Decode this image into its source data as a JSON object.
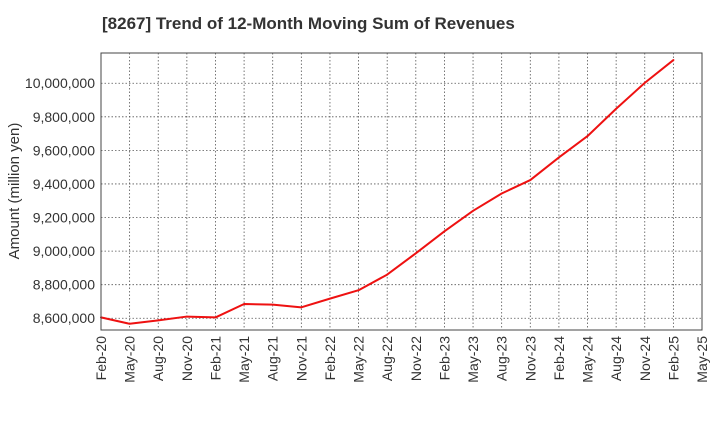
{
  "chart_data": {
    "type": "line",
    "title": "[8267]  Trend of 12-Month Moving Sum of Revenues",
    "xlabel": "",
    "ylabel": "Amount (million yen)",
    "x": [
      "Feb-20",
      "May-20",
      "Aug-20",
      "Nov-20",
      "Feb-21",
      "May-21",
      "Aug-21",
      "Nov-21",
      "Feb-22",
      "May-22",
      "Aug-22",
      "Nov-22",
      "Feb-23",
      "May-23",
      "Aug-23",
      "Nov-23",
      "Feb-24",
      "May-24",
      "Aug-24",
      "Nov-24",
      "Feb-25"
    ],
    "x_ticks": [
      "Feb-20",
      "May-20",
      "Aug-20",
      "Nov-20",
      "Feb-21",
      "May-21",
      "Aug-21",
      "Nov-21",
      "Feb-22",
      "May-22",
      "Aug-22",
      "Nov-22",
      "Feb-23",
      "May-23",
      "Aug-23",
      "Nov-23",
      "Feb-24",
      "May-24",
      "Aug-24",
      "Nov-24",
      "Feb-25",
      "May-25"
    ],
    "series": [
      {
        "values": [
          8605000,
          8567000,
          8587000,
          8610000,
          8605000,
          8685000,
          8681000,
          8665000,
          8717000,
          8767000,
          8860000,
          8987000,
          9118000,
          9240000,
          9343000,
          9423000,
          9558000,
          9685000,
          9848000,
          10002000,
          10138000
        ],
        "color": "#ee1111"
      }
    ],
    "ylim": [
      8530000,
      10180000
    ],
    "y_ticks": [
      8600000,
      8800000,
      9000000,
      9200000,
      9400000,
      9600000,
      9800000,
      10000000
    ],
    "y_tick_labels": [
      "8,600,000",
      "8,800,000",
      "9,000,000",
      "9,200,000",
      "9,400,000",
      "9,600,000",
      "9,800,000",
      "10,000,000"
    ],
    "grid": true,
    "legend": "none"
  }
}
